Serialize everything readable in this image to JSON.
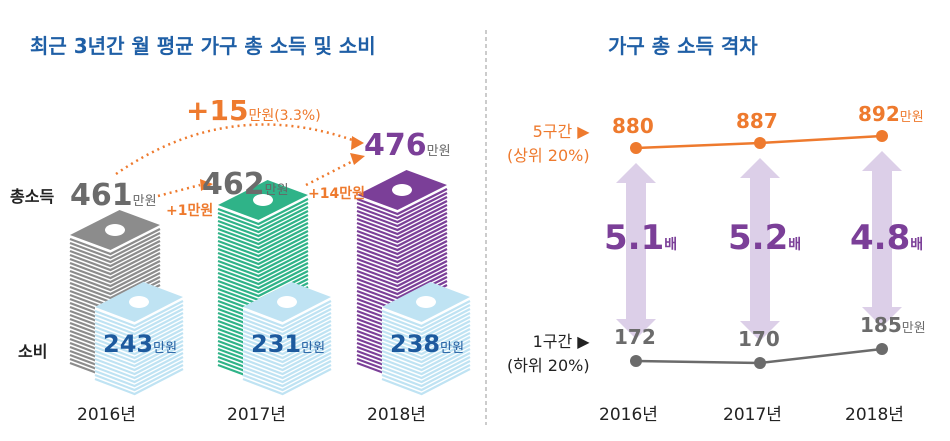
{
  "chart_data": [
    {
      "type": "bar",
      "title": "최근 3년간 월 평균 가구 총 소득 및 소비",
      "categories": [
        "2016년",
        "2017년",
        "2018년"
      ],
      "series": [
        {
          "name": "총소득",
          "values": [
            461,
            462,
            476
          ],
          "colors": [
            "#8c8c8c",
            "#2fb388",
            "#7b3f98"
          ]
        },
        {
          "name": "소비",
          "values": [
            243,
            231,
            238
          ],
          "color": "#bfe3f3"
        }
      ],
      "unit": "만원",
      "annotations": {
        "total_change": "+15",
        "total_change_pct": "(3.3%)",
        "change_2017": "+1만원",
        "change_2018": "+14만원"
      }
    },
    {
      "type": "line",
      "title": "가구 총 소득 격차",
      "categories": [
        "2016년",
        "2017년",
        "2018년"
      ],
      "series": [
        {
          "name": "5구간 ▶",
          "sub": "(상위 20%)",
          "values": [
            880,
            887,
            892
          ],
          "color": "#ee7a2e"
        },
        {
          "name": "1구간 ▶",
          "sub": "(하위 20%)",
          "values": [
            172,
            170,
            185
          ],
          "color": "#6b6b6b"
        }
      ],
      "ratios": [
        "5.1",
        "5.2",
        "4.8"
      ],
      "ratio_unit": "배",
      "unit": "만원"
    }
  ],
  "labels": {
    "income": "총소득",
    "spend": "소비",
    "unit": "만원"
  },
  "colors": {
    "title": "#1f5fa6",
    "orange": "#ee7a2e",
    "purple": "#7b3f98",
    "blue": "#1d5a9e",
    "lavender": "#dccfe8"
  }
}
